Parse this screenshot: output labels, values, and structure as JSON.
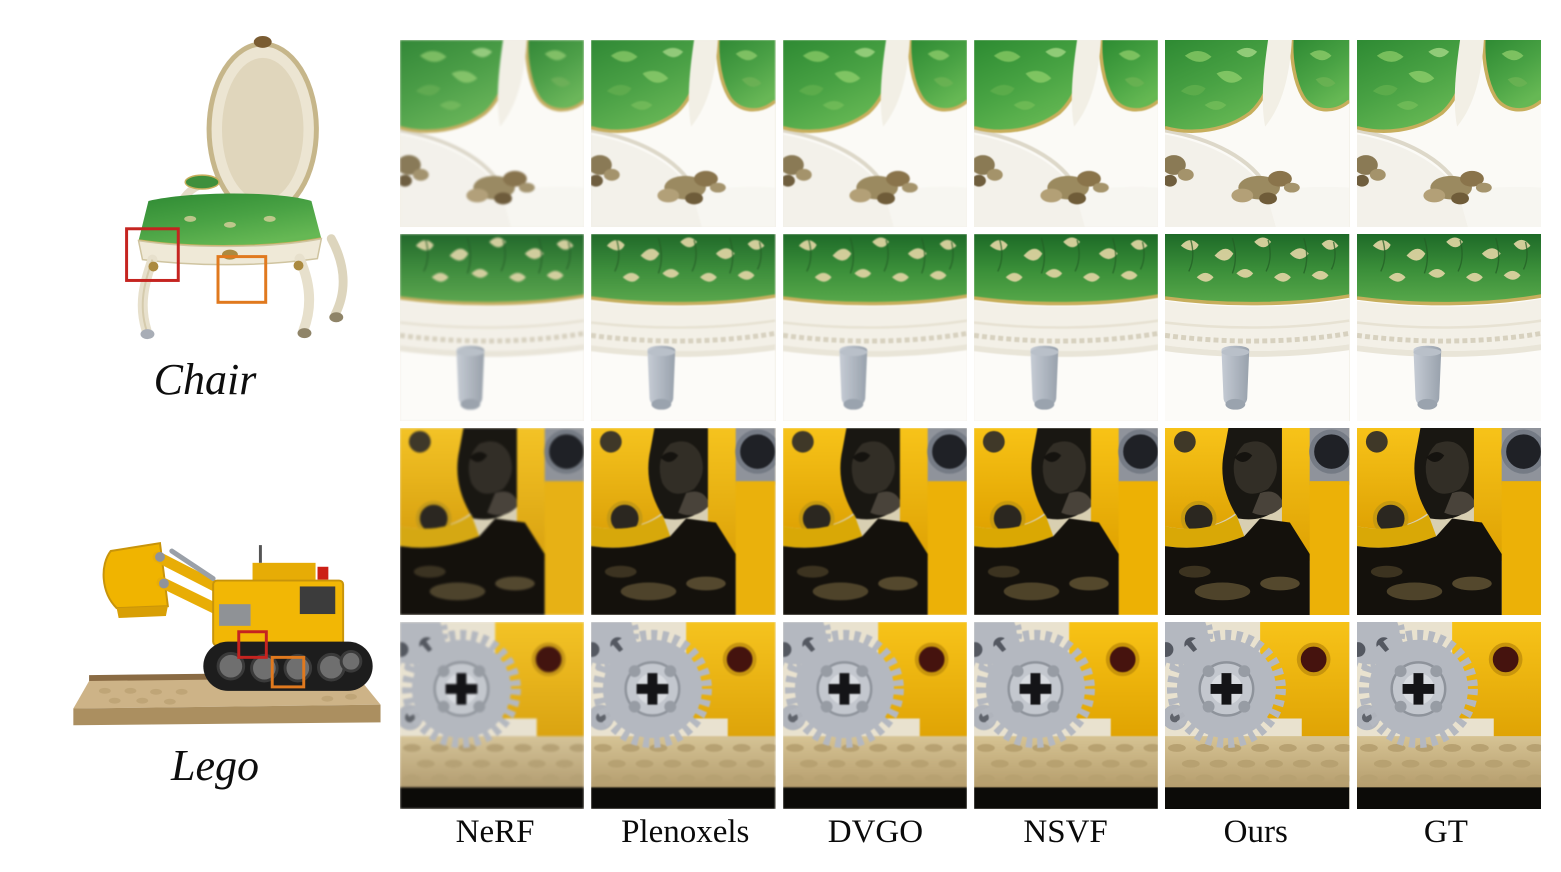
{
  "figure": {
    "scene_labels": {
      "chair": "Chair",
      "lego": "Lego"
    },
    "methods": [
      "NeRF",
      "Plenoxels",
      "DVGO",
      "NSVF",
      "Ours",
      "GT"
    ],
    "rows": [
      {
        "id": "chair-top",
        "scene": "Chair",
        "description": "green cushion corner with carved white frame and gilt ornament"
      },
      {
        "id": "chair-rail",
        "scene": "Chair",
        "description": "green damask band over carved rail and grey leg stump"
      },
      {
        "id": "lego-dark",
        "scene": "Lego",
        "description": "yellow beams around dark machinery cavity"
      },
      {
        "id": "lego-gear",
        "scene": "Lego",
        "description": "grey gear on yellow plate over studded tan baseplate"
      }
    ],
    "crop_markers": {
      "red": "#c52420",
      "orange": "#e0791e"
    },
    "colors": {
      "background": "#ffffff",
      "chair_green": "#3f8f3c",
      "chair_gold": "#c7ae5c",
      "lego_yellow": "#f2b705",
      "baseplate_tan": "#cdb387",
      "gear_grey": "#b4b8c0",
      "text": "#0a0a0a"
    }
  }
}
